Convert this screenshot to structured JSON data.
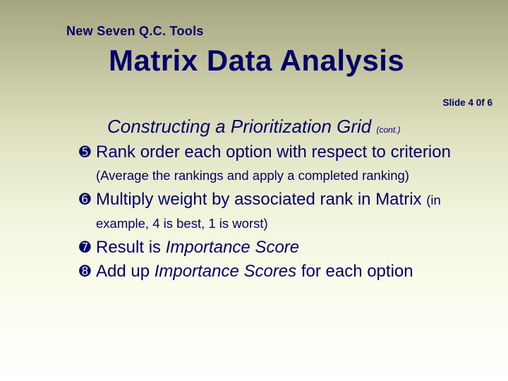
{
  "header": {
    "small": "New Seven Q.C. Tools",
    "big": "Matrix Data Analysis"
  },
  "slide_indicator": "Slide 4 0f 6",
  "subtitle": {
    "main": "Constructing a Prioritization Grid",
    "cont": "(cont.)"
  },
  "bullets": {
    "b5": "➎",
    "b6": "➏",
    "b7": "➐",
    "b8": "➑"
  },
  "items": {
    "i5_a": "Rank order each option with respect to criterion ",
    "i5_b": "(Average the rankings and apply a completed ranking)",
    "i6_a": "Multiply weight by associated rank in Matrix ",
    "i6_b": "(in example, 4 is best, 1 is worst)",
    "i7_a": "Result is ",
    "i7_b": "Importance Score",
    "i8_a": "Add up ",
    "i8_b": "Importance Scores",
    "i8_c": " for each option"
  },
  "colors": {
    "text": "#00006a",
    "bg_top": "#a5a57e",
    "bg_bottom": "#ffffff"
  },
  "fonts": {
    "header_family": "Arial Black",
    "body_family": "Verdana",
    "header_small_size": 18,
    "header_big_size": 42,
    "subtitle_size": 26,
    "body_size": 24,
    "body_small_size": 18.5,
    "slidenum_size": 13.5
  }
}
